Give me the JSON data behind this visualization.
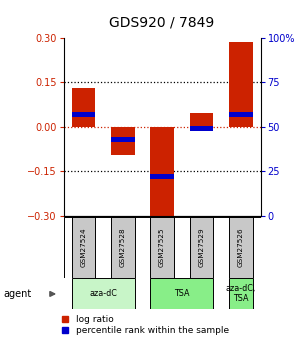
{
  "title": "GDS920 / 7849",
  "samples": [
    "GSM27524",
    "GSM27528",
    "GSM27525",
    "GSM27529",
    "GSM27526"
  ],
  "log_ratios": [
    0.13,
    -0.095,
    -0.305,
    0.048,
    0.285
  ],
  "percentile_ranks": [
    57,
    43,
    22,
    49,
    57
  ],
  "agents": [
    {
      "label": "aza-dC",
      "start": 0,
      "end": 1,
      "color": "#b8f0b8"
    },
    {
      "label": "TSA",
      "start": 2,
      "end": 3,
      "color": "#77dd77"
    },
    {
      "label": "aza-dC,\nTSA",
      "start": 4,
      "end": 4,
      "color": "#77dd77"
    }
  ],
  "agent_groups": [
    {
      "label": "aza-dC",
      "cols": [
        0,
        1
      ],
      "color": "#c8f5c8"
    },
    {
      "label": "TSA",
      "cols": [
        2,
        3
      ],
      "color": "#88ee88"
    },
    {
      "label": "aza-dC,\nTSA",
      "cols": [
        4,
        4
      ],
      "color": "#88ee88"
    }
  ],
  "ylim": [
    -0.3,
    0.3
  ],
  "yticks_left": [
    -0.3,
    -0.15,
    0,
    0.15,
    0.3
  ],
  "yticks_right_labels": [
    "0",
    "25",
    "50",
    "75",
    "100%"
  ],
  "bar_width": 0.6,
  "red_color": "#cc2200",
  "blue_color": "#0000cc",
  "sample_box_color": "#c8c8c8",
  "title_fontsize": 10,
  "tick_fontsize": 7,
  "legend_fontsize": 6.5
}
